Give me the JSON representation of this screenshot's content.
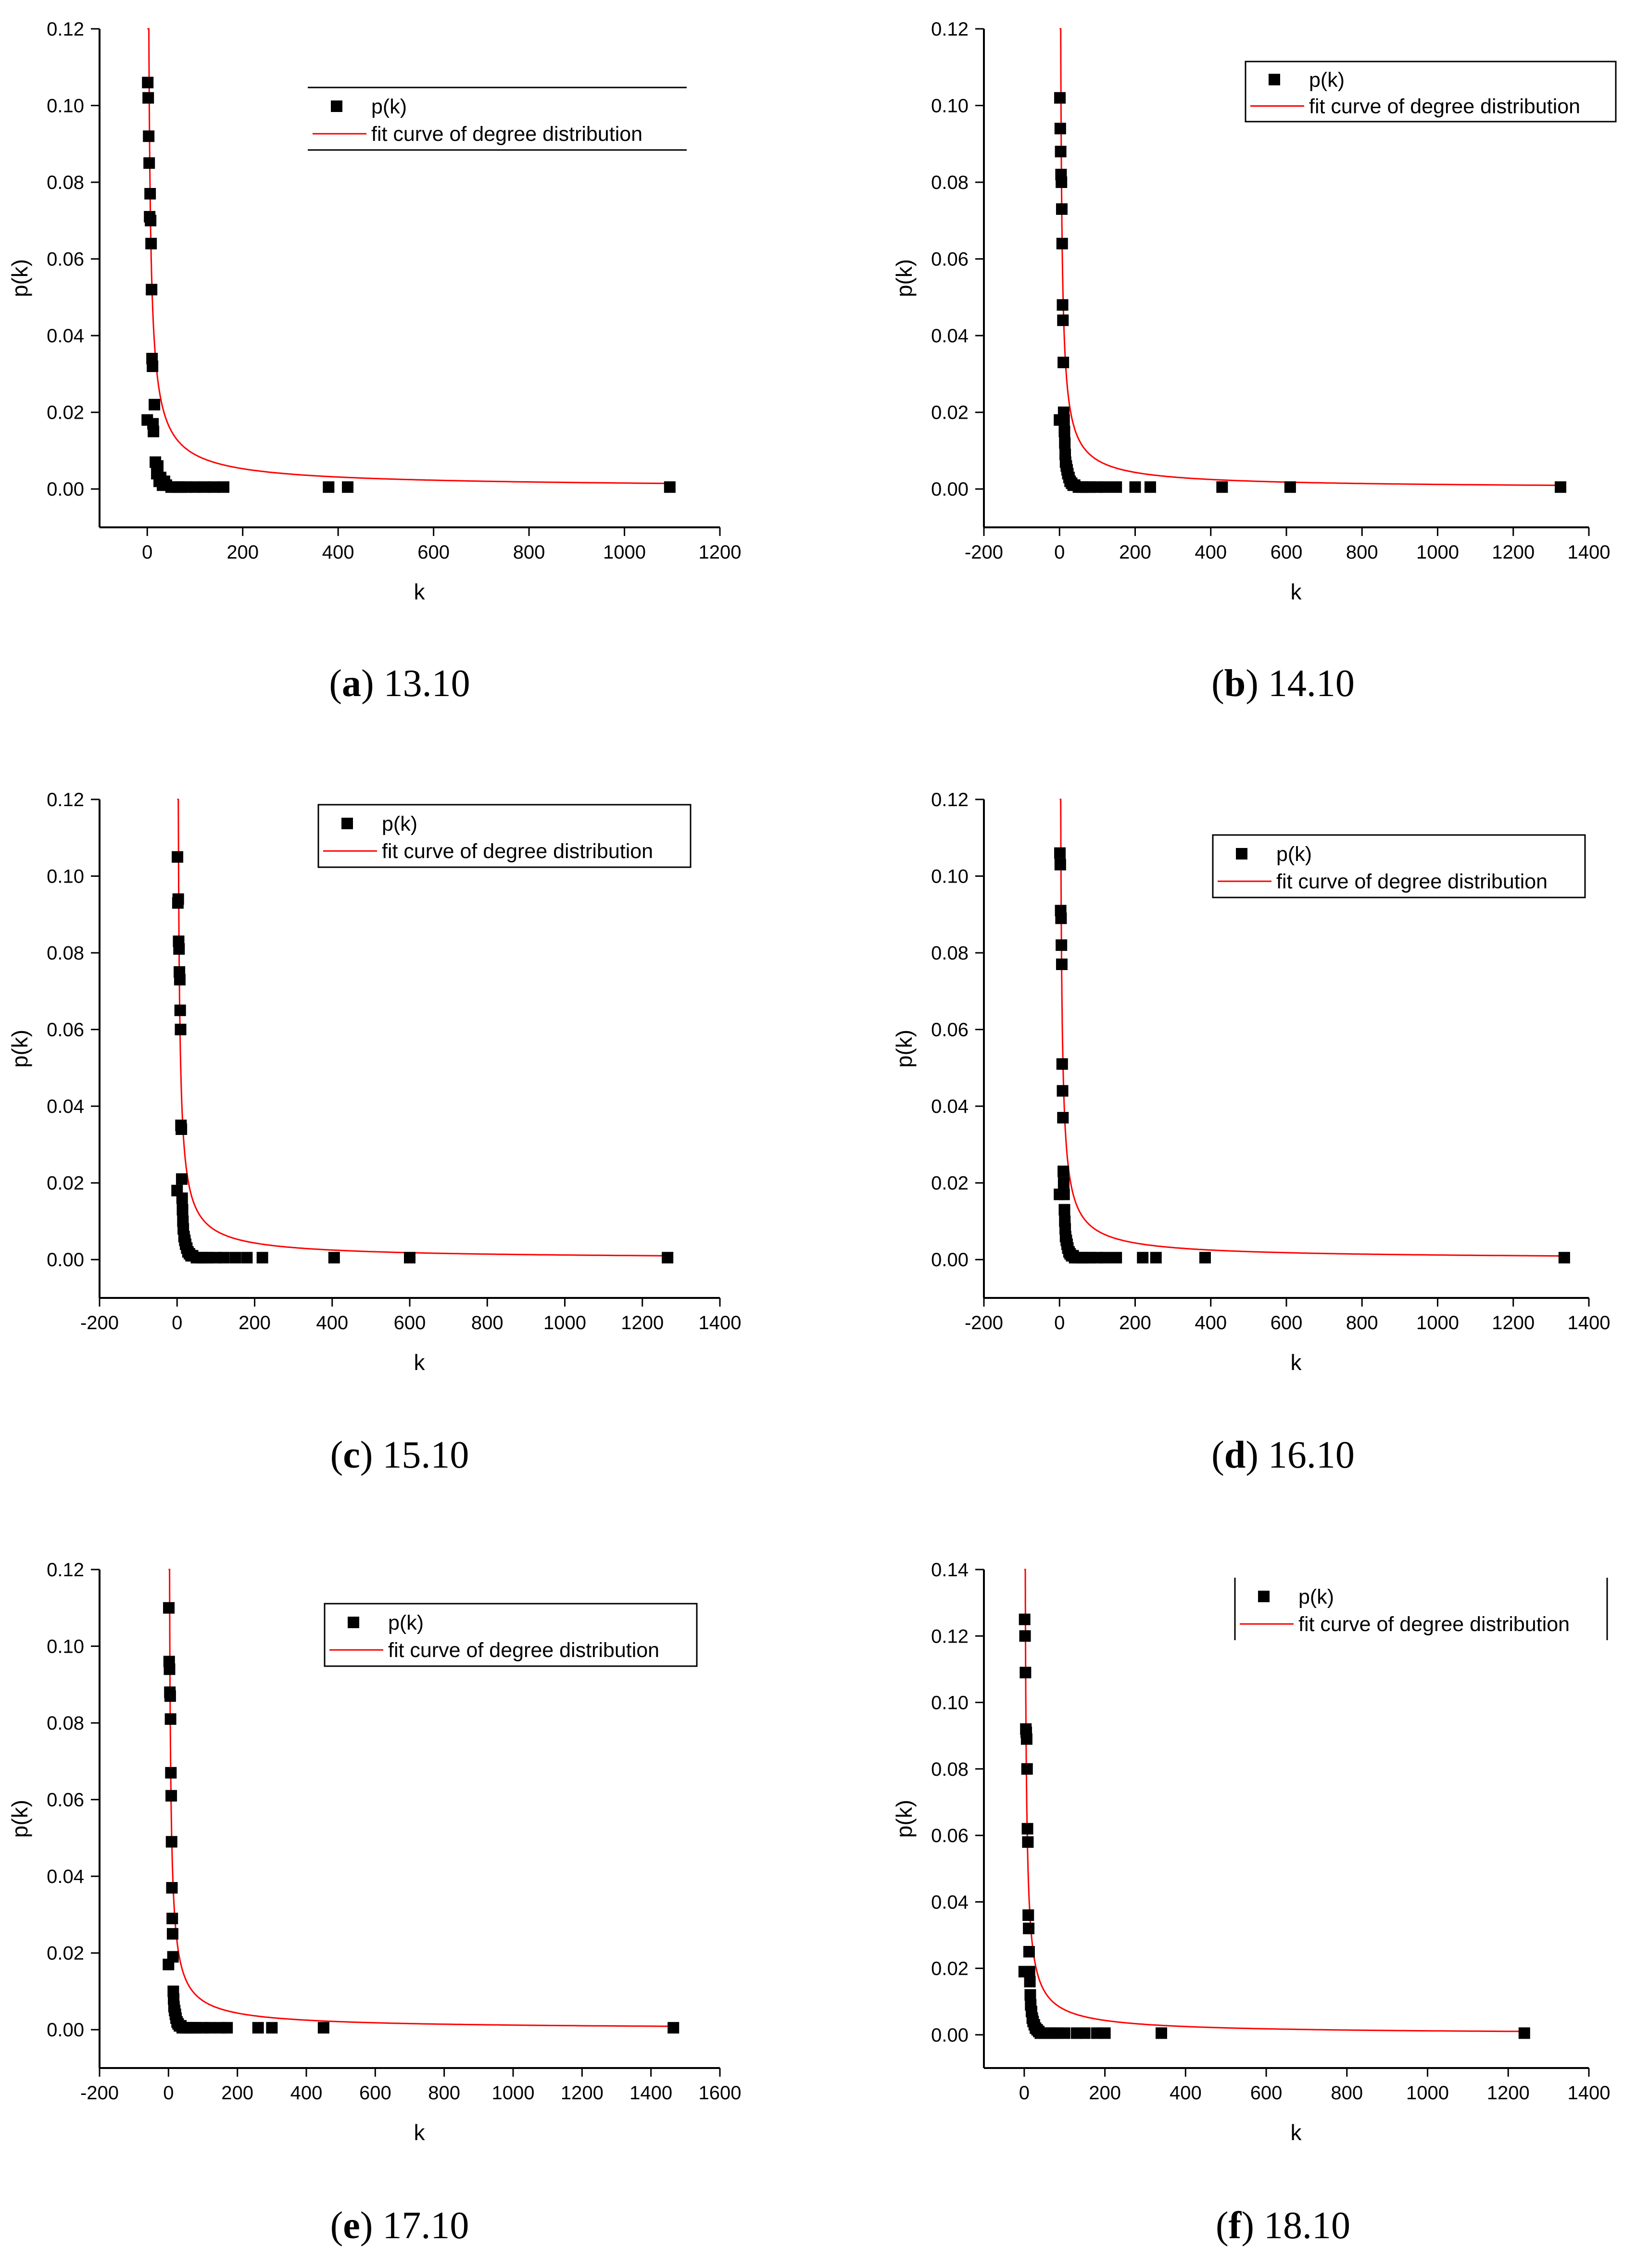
{
  "chart_data": [
    {
      "type": "scatter",
      "caption": {
        "letter": "a",
        "text": "13.10"
      },
      "xlabel": "k",
      "ylabel": "p(k)",
      "xlim": [
        -100,
        1200
      ],
      "ylim": [
        -0.01,
        0.12
      ],
      "xticks": [
        0,
        200,
        400,
        600,
        800,
        1000,
        1200
      ],
      "yticks": [
        0.0,
        0.02,
        0.04,
        0.06,
        0.08,
        0.1,
        0.12
      ],
      "legend": {
        "position": "top-right",
        "entries": [
          "p(k)",
          "fit curve of degree distribution"
        ],
        "frame": "top-bottom"
      },
      "series": [
        {
          "name": "p(k)",
          "marker": "square",
          "color": "#000000",
          "x": [
            0,
            1,
            2,
            3,
            4,
            5,
            6,
            7,
            8,
            9,
            10,
            11,
            12,
            13,
            15,
            17,
            20,
            22,
            25,
            28,
            32,
            36,
            40,
            50,
            60,
            70,
            80,
            100,
            120,
            140,
            160,
            380,
            420,
            1095
          ],
          "y": [
            0.018,
            0.106,
            0.102,
            0.092,
            0.085,
            0.071,
            0.077,
            0.07,
            0.064,
            0.052,
            0.034,
            0.032,
            0.017,
            0.015,
            0.022,
            0.007,
            0.004,
            0.006,
            0.002,
            0.003,
            0.001,
            0.002,
            0.001,
            0.0005,
            0.0005,
            0.0005,
            0.0005,
            0.0005,
            0.0005,
            0.0005,
            0.0005,
            0.0005,
            0.0005,
            0.0005
          ]
        },
        {
          "name": "fit curve of degree distribution",
          "type": "line",
          "color": "#ff0000",
          "fit": {
            "a": 0.3,
            "b": 0.762
          },
          "x_range": [
            0,
            1095
          ]
        }
      ]
    },
    {
      "type": "scatter",
      "caption": {
        "letter": "b",
        "text": "14.10"
      },
      "xlabel": "k",
      "ylabel": "p(k)",
      "xlim": [
        -200,
        1400
      ],
      "ylim": [
        -0.01,
        0.12
      ],
      "xticks": [
        -200,
        0,
        200,
        400,
        600,
        800,
        1000,
        1200,
        1400
      ],
      "yticks": [
        0.0,
        0.02,
        0.04,
        0.06,
        0.08,
        0.1,
        0.12
      ],
      "legend": {
        "position": "top-right",
        "entries": [
          "p(k)",
          "fit curve of degree distribution"
        ],
        "frame": "box"
      },
      "series": [
        {
          "name": "p(k)",
          "marker": "square",
          "color": "#000000",
          "x": [
            0,
            1,
            2,
            3,
            4,
            5,
            6,
            7,
            8,
            9,
            10,
            11,
            12,
            13,
            14,
            15,
            16,
            18,
            20,
            22,
            25,
            28,
            32,
            36,
            40,
            50,
            60,
            70,
            80,
            100,
            120,
            150,
            200,
            240,
            430,
            610,
            1325
          ],
          "y": [
            0.018,
            0.102,
            0.094,
            0.088,
            0.082,
            0.08,
            0.073,
            0.064,
            0.048,
            0.044,
            0.033,
            0.02,
            0.018,
            0.015,
            0.012,
            0.009,
            0.007,
            0.006,
            0.005,
            0.004,
            0.003,
            0.002,
            0.0015,
            0.001,
            0.001,
            0.0005,
            0.0005,
            0.0005,
            0.0005,
            0.0005,
            0.0005,
            0.0005,
            0.0005,
            0.0005,
            0.0005,
            0.0005,
            0.0005
          ]
        },
        {
          "name": "fit curve of degree distribution",
          "type": "line",
          "color": "#ff0000",
          "fit": {
            "a": 0.3,
            "b": 0.8
          },
          "x_range": [
            0,
            1325
          ]
        }
      ]
    },
    {
      "type": "scatter",
      "caption": {
        "letter": "c",
        "text": "15.10"
      },
      "xlabel": "k",
      "ylabel": "p(k)",
      "xlim": [
        -200,
        1400
      ],
      "ylim": [
        -0.01,
        0.12
      ],
      "xticks": [
        -200,
        0,
        200,
        400,
        600,
        800,
        1000,
        1200,
        1400
      ],
      "yticks": [
        0.0,
        0.02,
        0.04,
        0.06,
        0.08,
        0.1,
        0.12
      ],
      "legend": {
        "position": "top-right",
        "entries": [
          "p(k)",
          "fit curve of degree distribution"
        ],
        "frame": "box"
      },
      "series": [
        {
          "name": "p(k)",
          "marker": "square",
          "color": "#000000",
          "x": [
            0,
            1,
            2,
            3,
            4,
            5,
            6,
            7,
            8,
            9,
            10,
            11,
            12,
            13,
            14,
            15,
            16,
            18,
            20,
            22,
            25,
            28,
            32,
            36,
            40,
            50,
            60,
            70,
            80,
            100,
            120,
            150,
            180,
            220,
            405,
            600,
            1265
          ],
          "y": [
            0.018,
            0.105,
            0.093,
            0.094,
            0.083,
            0.081,
            0.075,
            0.073,
            0.065,
            0.06,
            0.035,
            0.034,
            0.021,
            0.016,
            0.013,
            0.01,
            0.008,
            0.006,
            0.005,
            0.004,
            0.003,
            0.002,
            0.0015,
            0.001,
            0.001,
            0.0005,
            0.0005,
            0.0005,
            0.0005,
            0.0005,
            0.0005,
            0.0005,
            0.0005,
            0.0005,
            0.0005,
            0.0005,
            0.0005
          ]
        },
        {
          "name": "fit curve of degree distribution",
          "type": "line",
          "color": "#ff0000",
          "fit": {
            "a": 0.3,
            "b": 0.8
          },
          "x_range": [
            0,
            1265
          ]
        }
      ]
    },
    {
      "type": "scatter",
      "caption": {
        "letter": "d",
        "text": "16.10"
      },
      "xlabel": "k",
      "ylabel": "p(k)",
      "xlim": [
        -200,
        1400
      ],
      "ylim": [
        -0.01,
        0.12
      ],
      "xticks": [
        -200,
        0,
        200,
        400,
        600,
        800,
        1000,
        1200,
        1400
      ],
      "yticks": [
        0.0,
        0.02,
        0.04,
        0.06,
        0.08,
        0.1,
        0.12
      ],
      "legend": {
        "position": "top-right",
        "entries": [
          "p(k)",
          "fit curve of degree distribution"
        ],
        "frame": "box"
      },
      "series": [
        {
          "name": "p(k)",
          "marker": "square",
          "color": "#000000",
          "x": [
            0,
            1,
            2,
            3,
            4,
            5,
            6,
            7,
            8,
            9,
            10,
            11,
            12,
            13,
            14,
            15,
            16,
            18,
            20,
            22,
            25,
            28,
            32,
            36,
            40,
            50,
            60,
            70,
            80,
            100,
            120,
            150,
            220,
            255,
            385,
            1335
          ],
          "y": [
            0.017,
            0.106,
            0.103,
            0.091,
            0.089,
            0.082,
            0.077,
            0.051,
            0.044,
            0.037,
            0.023,
            0.02,
            0.017,
            0.013,
            0.01,
            0.008,
            0.006,
            0.005,
            0.004,
            0.003,
            0.002,
            0.0015,
            0.001,
            0.001,
            0.0005,
            0.0005,
            0.0005,
            0.0005,
            0.0005,
            0.0005,
            0.0005,
            0.0005,
            0.0005,
            0.0005,
            0.0005,
            0.0005
          ]
        },
        {
          "name": "fit curve of degree distribution",
          "type": "line",
          "color": "#ff0000",
          "fit": {
            "a": 0.3,
            "b": 0.8
          },
          "x_range": [
            0,
            1335
          ]
        }
      ]
    },
    {
      "type": "scatter",
      "caption": {
        "letter": "e",
        "text": "17.10"
      },
      "xlabel": "k",
      "ylabel": "p(k)",
      "xlim": [
        -200,
        1600
      ],
      "ylim": [
        -0.01,
        0.12
      ],
      "xticks": [
        -200,
        0,
        200,
        400,
        600,
        800,
        1000,
        1200,
        1400,
        1600
      ],
      "yticks": [
        0.0,
        0.02,
        0.04,
        0.06,
        0.08,
        0.1,
        0.12
      ],
      "legend": {
        "position": "top-right",
        "entries": [
          "p(k)",
          "fit curve of degree distribution"
        ],
        "frame": "box"
      },
      "series": [
        {
          "name": "p(k)",
          "marker": "square",
          "color": "#000000",
          "x": [
            0,
            1,
            2,
            3,
            4,
            5,
            6,
            7,
            8,
            9,
            10,
            11,
            12,
            13,
            14,
            15,
            16,
            18,
            20,
            22,
            25,
            28,
            32,
            36,
            40,
            50,
            60,
            70,
            80,
            100,
            120,
            150,
            170,
            260,
            300,
            450,
            1465
          ],
          "y": [
            0.017,
            0.11,
            0.096,
            0.094,
            0.088,
            0.087,
            0.081,
            0.067,
            0.061,
            0.049,
            0.037,
            0.029,
            0.025,
            0.019,
            0.01,
            0.008,
            0.006,
            0.005,
            0.004,
            0.003,
            0.002,
            0.0015,
            0.001,
            0.001,
            0.0005,
            0.0005,
            0.0005,
            0.0005,
            0.0005,
            0.0005,
            0.0005,
            0.0005,
            0.0005,
            0.0005,
            0.0005,
            0.0005,
            0.0005
          ]
        },
        {
          "name": "fit curve of degree distribution",
          "type": "line",
          "color": "#ff0000",
          "fit": {
            "a": 0.3,
            "b": 0.8
          },
          "x_range": [
            0,
            1465
          ]
        }
      ]
    },
    {
      "type": "scatter",
      "caption": {
        "letter": "f",
        "text": "18.10"
      },
      "xlabel": "k",
      "ylabel": "p(k)",
      "xlim": [
        -100,
        1400
      ],
      "ylim": [
        -0.01,
        0.14
      ],
      "xticks": [
        0,
        200,
        400,
        600,
        800,
        1000,
        1200,
        1400
      ],
      "yticks": [
        0.0,
        0.02,
        0.04,
        0.06,
        0.08,
        0.1,
        0.12,
        0.14
      ],
      "legend": {
        "position": "top-right",
        "entries": [
          "p(k)",
          "fit curve of degree distribution"
        ],
        "frame": "left-right"
      },
      "series": [
        {
          "name": "p(k)",
          "marker": "square",
          "color": "#000000",
          "x": [
            0,
            1,
            2,
            3,
            4,
            5,
            6,
            7,
            8,
            9,
            10,
            11,
            12,
            13,
            14,
            15,
            16,
            18,
            20,
            22,
            25,
            28,
            32,
            36,
            40,
            50,
            60,
            70,
            80,
            100,
            130,
            150,
            180,
            200,
            340,
            1240
          ],
          "y": [
            0.019,
            0.125,
            0.12,
            0.109,
            0.092,
            0.091,
            0.089,
            0.08,
            0.062,
            0.058,
            0.036,
            0.032,
            0.025,
            0.019,
            0.016,
            0.012,
            0.009,
            0.007,
            0.005,
            0.004,
            0.003,
            0.002,
            0.0015,
            0.001,
            0.0005,
            0.0005,
            0.0005,
            0.0005,
            0.0005,
            0.0005,
            0.0005,
            0.0005,
            0.0005,
            0.0005,
            0.0005,
            0.0005
          ]
        },
        {
          "name": "fit curve of degree distribution",
          "type": "line",
          "color": "#ff0000",
          "fit": {
            "a": 0.3,
            "b": 0.8
          },
          "x_range": [
            0,
            1240
          ]
        }
      ]
    }
  ]
}
